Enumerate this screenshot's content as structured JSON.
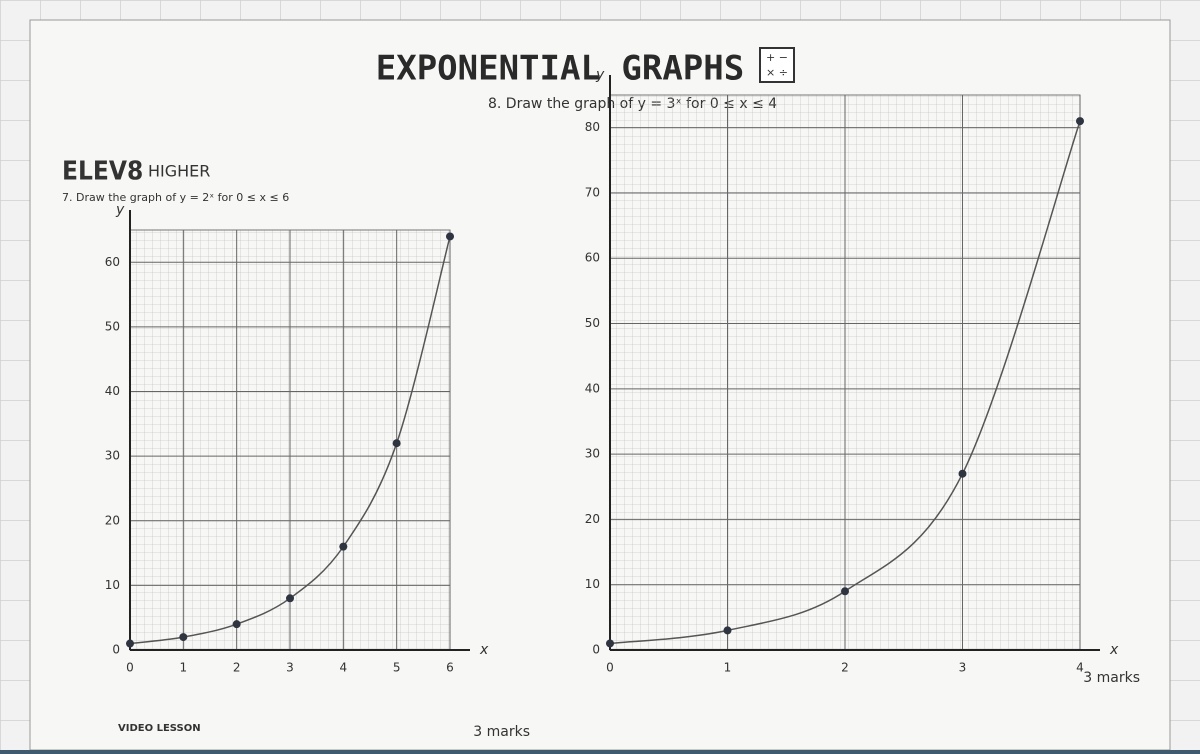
{
  "header": {
    "title": "EXPONENTIAL GRAPHS",
    "brand": "ELEV8",
    "level": "HIGHER",
    "video": "VIDEO LESSON"
  },
  "chart_data": [
    {
      "type": "line",
      "title": "7. Draw the graph of y = 2ˣ for 0 ≤ x ≤ 6",
      "x_label": "x",
      "y_label": "y",
      "x": [
        0,
        1,
        2,
        3,
        4,
        5,
        6
      ],
      "series": [
        {
          "values": [
            1,
            2,
            4,
            8,
            16,
            32,
            64
          ],
          "color": "#555555"
        }
      ],
      "xlim": [
        0,
        6
      ],
      "ylim": [
        0,
        65
      ],
      "xticks": [
        0,
        1,
        2,
        3,
        4,
        5,
        6
      ],
      "yticks": [
        0,
        10,
        20,
        30,
        40,
        50,
        60
      ],
      "grid": true,
      "marks": "3 marks"
    },
    {
      "type": "line",
      "title": "8. Draw the graph of y = 3ˣ for 0 ≤ x ≤ 4",
      "x_label": "x",
      "y_label": "y",
      "x": [
        0,
        1,
        2,
        3,
        4
      ],
      "series": [
        {
          "values": [
            1,
            3,
            9,
            27,
            81
          ],
          "color": "#555555"
        }
      ],
      "xlim": [
        0,
        4
      ],
      "ylim": [
        0,
        85
      ],
      "xticks": [
        0,
        1,
        2,
        3,
        4
      ],
      "yticks": [
        0,
        10,
        20,
        30,
        40,
        50,
        60,
        70,
        80
      ],
      "grid": true,
      "marks": "3 marks"
    }
  ]
}
